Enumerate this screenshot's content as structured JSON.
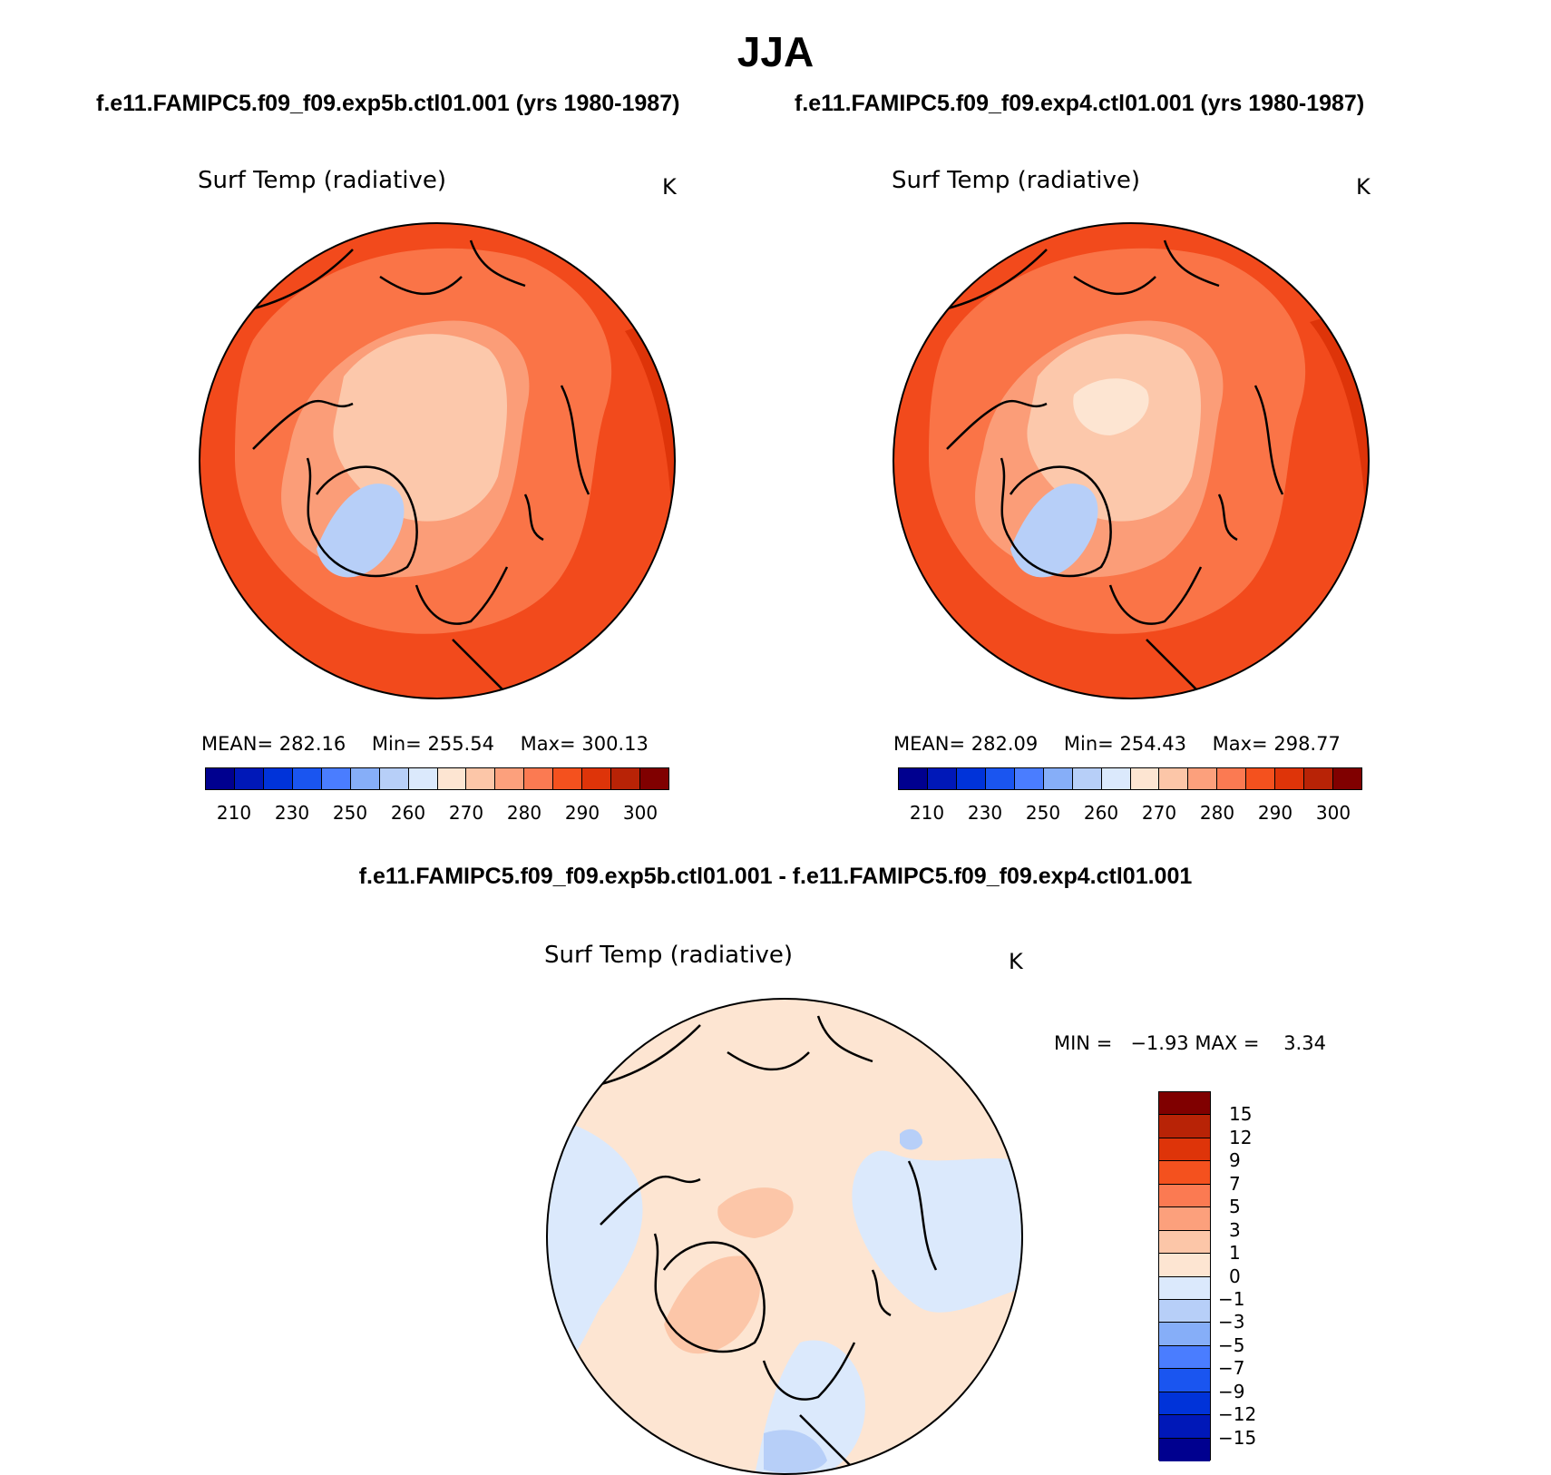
{
  "title": "JJA",
  "panels": [
    {
      "case": "f.e11.FAMIPC5.f09_f09.exp5b.ctl01.001 (yrs 1980-1987)",
      "variable": "Surf Temp (radiative)",
      "units": "K",
      "stats": {
        "mean_label": "MEAN=",
        "mean": "282.16",
        "min_label": "Min=",
        "min": "255.54",
        "max_label": "Max=",
        "max": "300.13"
      }
    },
    {
      "case": "f.e11.FAMIPC5.f09_f09.exp4.ctl01.001 (yrs 1980-1987)",
      "variable": "Surf Temp (radiative)",
      "units": "K",
      "stats": {
        "mean_label": "MEAN=",
        "mean": "282.09",
        "min_label": "Min=",
        "min": "254.43",
        "max_label": "Max=",
        "max": "298.77"
      }
    }
  ],
  "field_colorbar": {
    "colors": [
      "#00008f",
      "#0018b8",
      "#0033d9",
      "#1a55f0",
      "#4a7dff",
      "#86aef8",
      "#b7cff8",
      "#dbe9fc",
      "#fde5d2",
      "#fcc6a8",
      "#fca07c",
      "#fb7a52",
      "#f4511e",
      "#de3409",
      "#b82306",
      "#800000"
    ],
    "tick_labels": [
      "210",
      "230",
      "250",
      "260",
      "270",
      "280",
      "290",
      "300"
    ]
  },
  "difference": {
    "title": "f.e11.FAMIPC5.f09_f09.exp5b.ctl01.001 - f.e11.FAMIPC5.f09_f09.exp4.ctl01.001",
    "variable": "Surf Temp (radiative)",
    "units": "K",
    "min_max_text": "MIN =   −1.93 MAX =    3.34",
    "colorbar": {
      "colors_top_to_bottom": [
        "#800000",
        "#b82306",
        "#de3409",
        "#f4511e",
        "#fb7a52",
        "#fca07c",
        "#fcc6a8",
        "#fde5d2",
        "#dbe9fc",
        "#b7cff8",
        "#86aef8",
        "#4a7dff",
        "#1a55f0",
        "#0033d9",
        "#0018b8",
        "#00008f"
      ],
      "tick_labels": [
        "15",
        "12",
        "9",
        "7",
        "5",
        "3",
        "1",
        "0",
        "−1",
        "−3",
        "−5",
        "−7",
        "−9",
        "−12",
        "−15"
      ]
    }
  },
  "map_colors": {
    "field_outer": "#f24a1c",
    "field_mid": "#fa7447",
    "field_inner": "#fb9d78",
    "field_arctic": "#fcc8ab",
    "field_core": "#fde5d2",
    "field_hot": "#de3409",
    "field_ice": "#b7cff8",
    "diff_pos": "#fde5d2",
    "diff_pos2": "#fcc6a8",
    "diff_neg": "#dbe9fc",
    "diff_neg2": "#b7cff8"
  }
}
